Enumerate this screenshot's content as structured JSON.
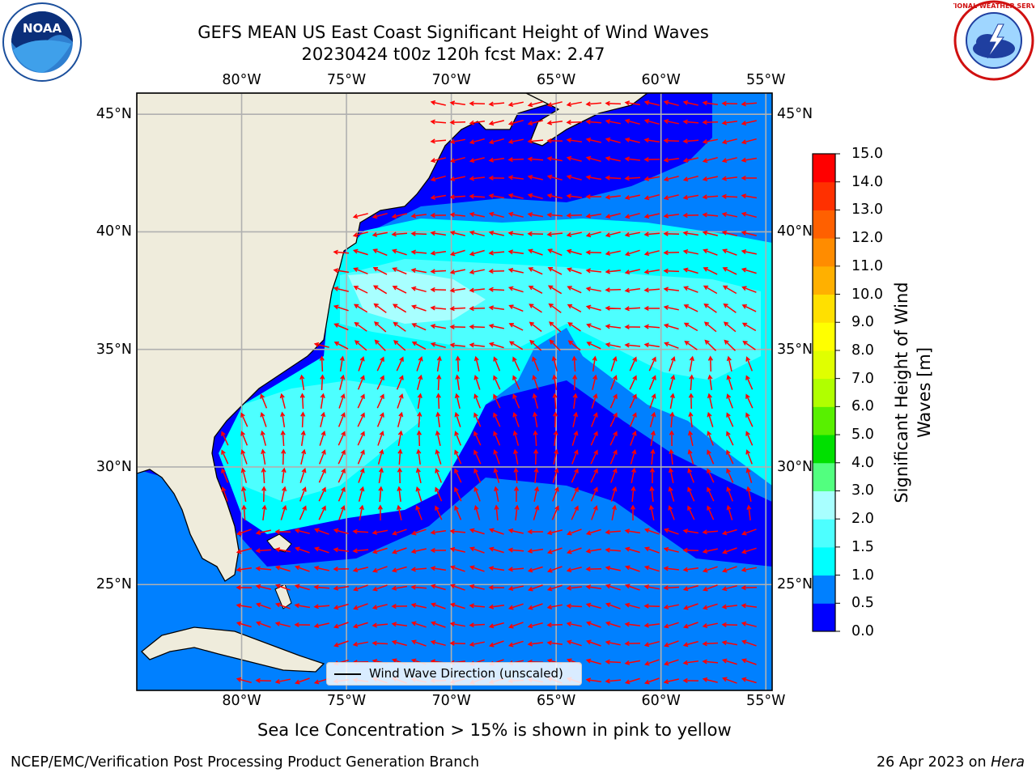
{
  "title": {
    "line1": "GEFS MEAN US East Coast Significant Height of Wind Waves",
    "line2": "20230424 t00z 120h fcst   Max: 2.47"
  },
  "map": {
    "lon_labels": [
      "80°W",
      "75°W",
      "70°W",
      "65°W",
      "60°W",
      "55°W"
    ],
    "lat_labels": [
      "45°N",
      "40°N",
      "35°N",
      "30°N",
      "25°N"
    ],
    "lon_values": [
      -80,
      -75,
      -70,
      -65,
      -60,
      -55
    ],
    "lat_values": [
      45,
      40,
      35,
      30,
      25
    ],
    "extent": {
      "lon_min": -85,
      "lon_max": -54.7,
      "lat_min": 20.5,
      "lat_max": 45.9
    },
    "land_color": "#efecdc",
    "grid_color": "#b0b0b0",
    "arrow_color": "#ff0000",
    "legend": {
      "label": "Wind Wave Direction (unscaled)"
    }
  },
  "colorbar": {
    "label_line1": "Significant Height of Wind",
    "label_line2": "Waves [m]",
    "ticks": [
      "0.0",
      "0.5",
      "1.0",
      "1.5",
      "2.0",
      "3.0",
      "4.0",
      "5.0",
      "6.0",
      "7.0",
      "8.0",
      "9.0",
      "10.0",
      "11.0",
      "12.0",
      "13.0",
      "14.0",
      "15.0"
    ],
    "colors": [
      "#0000ff",
      "#0080ff",
      "#00ffff",
      "#4dffff",
      "#a8ffff",
      "#52ff7f",
      "#00e000",
      "#58f000",
      "#b0ff00",
      "#e0ff00",
      "#ffff00",
      "#ffe000",
      "#ffb000",
      "#ff8c00",
      "#ff6000",
      "#ff3000",
      "#ff0000"
    ]
  },
  "logos": {
    "noaa_text": "NOAA",
    "nws_text": "NATIONAL WEATHER SERVICE"
  },
  "footnote": "Sea Ice Concentration > 15% is shown in pink to yellow",
  "credit_left": "NCEP/EMC/Verification Post Processing Product Generation Branch",
  "credit_right_date": "26 Apr 2023 on ",
  "credit_right_machine": "Hera"
}
